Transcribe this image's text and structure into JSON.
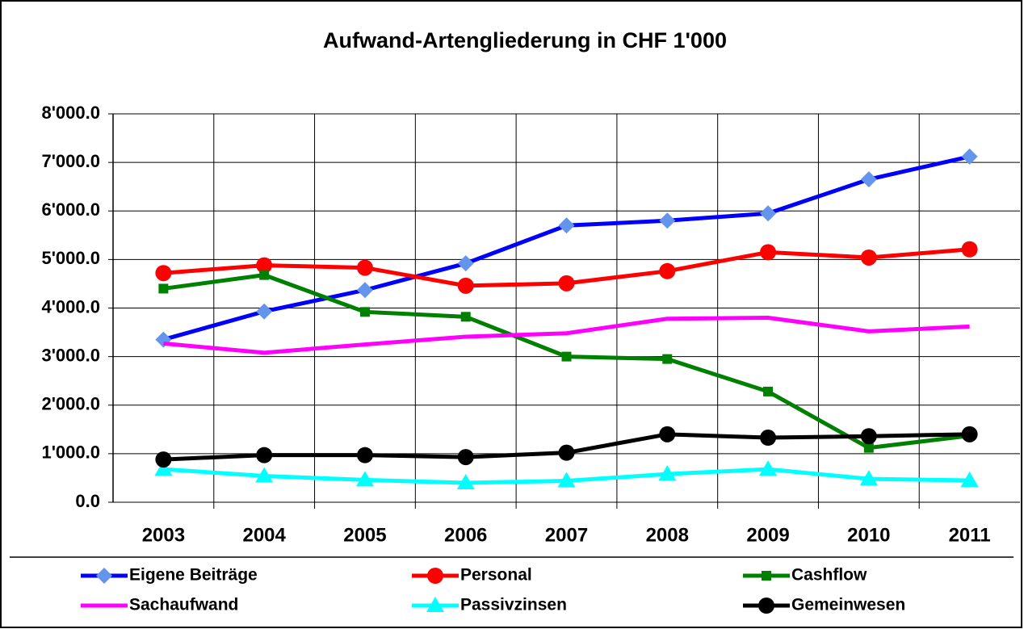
{
  "chart_data": {
    "type": "line",
    "title": "Aufwand-Artengliederung in CHF 1'000",
    "categories": [
      "2003",
      "2004",
      "2005",
      "2006",
      "2007",
      "2008",
      "2009",
      "2010",
      "2011"
    ],
    "ylim": [
      0,
      8000
    ],
    "yticks": [
      {
        "value": 0,
        "label": "0.0"
      },
      {
        "value": 1000,
        "label": "1'000.0"
      },
      {
        "value": 2000,
        "label": "2'000.0"
      },
      {
        "value": 3000,
        "label": "3'000.0"
      },
      {
        "value": 4000,
        "label": "4'000.0"
      },
      {
        "value": 5000,
        "label": "5'000.0"
      },
      {
        "value": 6000,
        "label": "6'000.0"
      },
      {
        "value": 7000,
        "label": "7'000.0"
      },
      {
        "value": 8000,
        "label": "8'000.0"
      }
    ],
    "grid": true,
    "series": [
      {
        "name": "Eigene Beiträge",
        "color": "#0000ff",
        "marker": "diamond",
        "marker_color": "#6495ed",
        "values": [
          3350,
          3930,
          4370,
          4920,
          5700,
          5800,
          5950,
          6650,
          7120
        ]
      },
      {
        "name": "Personal",
        "color": "#ff0000",
        "marker": "circle",
        "marker_color": "#ff0000",
        "values": [
          4720,
          4880,
          4830,
          4460,
          4510,
          4760,
          5150,
          5040,
          5210
        ]
      },
      {
        "name": "Cashflow",
        "color": "#008000",
        "marker": "square",
        "marker_color": "#008000",
        "values": [
          4400,
          4680,
          3920,
          3820,
          3000,
          2950,
          2280,
          1120,
          1370
        ]
      },
      {
        "name": "Sachaufwand",
        "color": "#ff00ff",
        "marker": "none",
        "marker_color": "#ff00ff",
        "values": [
          3270,
          3080,
          3250,
          3410,
          3480,
          3780,
          3800,
          3520,
          3620
        ]
      },
      {
        "name": "Passivzinsen",
        "color": "#00ffff",
        "marker": "triangle",
        "marker_color": "#00ffff",
        "values": [
          680,
          540,
          460,
          400,
          440,
          580,
          680,
          480,
          450
        ]
      },
      {
        "name": "Gemeinwesen",
        "color": "#000000",
        "marker": "circle",
        "marker_color": "#000000",
        "values": [
          880,
          970,
          970,
          930,
          1020,
          1400,
          1330,
          1360,
          1400
        ]
      }
    ]
  }
}
